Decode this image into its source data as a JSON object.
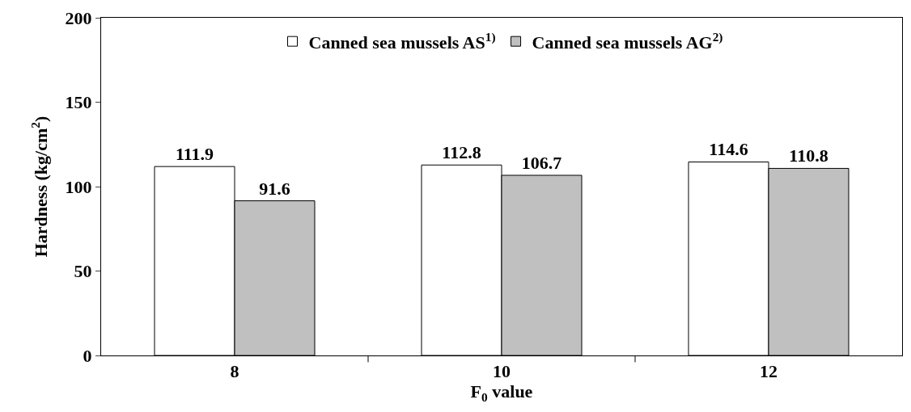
{
  "chart_data": {
    "type": "bar",
    "xlabel": "F$_{0}$ value",
    "ylabel": "Hardness (kg/cm$^{2}$)",
    "categories": [
      "8",
      "10",
      "12"
    ],
    "series": [
      {
        "name": "Canned sea mussels AS$^{1)}$",
        "color": "#ffffff",
        "values": [
          111.9,
          112.8,
          114.6
        ]
      },
      {
        "name": "Canned sea mussels AG$^{2)}$",
        "color": "#c0c0c0",
        "values": [
          91.6,
          106.7,
          110.8
        ]
      }
    ],
    "ylim": [
      0,
      200
    ],
    "yticks": [
      0,
      50,
      100,
      150,
      200
    ],
    "grid": false,
    "legend": "top",
    "data_labels": true
  }
}
